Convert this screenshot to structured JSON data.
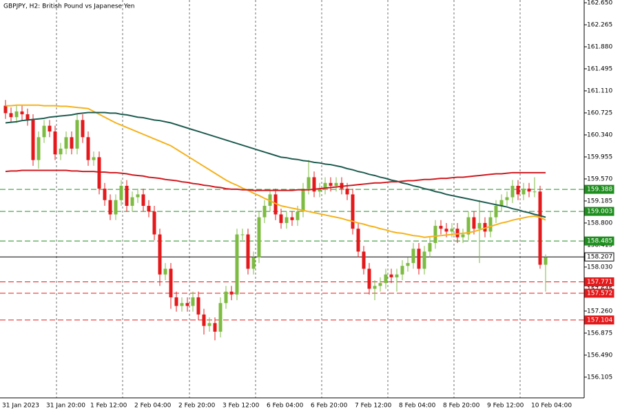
{
  "chart_data": {
    "type": "candlestick",
    "title": "GBPJPY, H2:  British Pound vs Japanese Yen",
    "categories": [
      "31 Jan 2023",
      null,
      null,
      null,
      null,
      null,
      null,
      null,
      "31 Jan 20:00",
      null,
      null,
      null,
      null,
      null,
      null,
      null,
      "1 Feb 12:00",
      null,
      null,
      null,
      null,
      null,
      null,
      null,
      "2 Feb 04:00",
      null,
      null,
      null,
      null,
      null,
      null,
      null,
      "2 Feb 20:00",
      null,
      null,
      null,
      null,
      null,
      null,
      null,
      "3 Feb 12:00",
      null,
      null,
      null,
      null,
      null,
      null,
      null,
      "6 Feb 04:00",
      null,
      null,
      null,
      null,
      null,
      null,
      null,
      "6 Feb 20:00",
      null,
      null,
      null,
      null,
      null,
      null,
      null,
      "7 Feb 12:00",
      null,
      null,
      null,
      null,
      null,
      null,
      null,
      "8 Feb 04:00",
      null,
      null,
      null,
      null,
      null,
      null,
      null,
      "8 Feb 20:00",
      null,
      null,
      null,
      null,
      null,
      null,
      null,
      "9 Feb 12:00",
      null,
      null,
      null,
      null,
      null,
      null,
      null,
      "10 Feb 04:00",
      null,
      null
    ],
    "open": [
      160.85,
      160.72,
      160.65,
      160.75,
      160.7,
      160.6,
      159.9,
      160.3,
      160.5,
      160.4,
      160.0,
      160.1,
      160.3,
      160.1,
      160.6,
      160.3,
      159.9,
      159.95,
      159.4,
      159.2,
      158.95,
      159.2,
      159.45,
      159.1,
      159.25,
      159.3,
      159.1,
      159.0,
      158.6,
      157.9,
      158.0,
      157.5,
      157.35,
      157.4,
      157.35,
      157.5,
      157.2,
      157.0,
      157.05,
      156.9,
      157.4,
      157.6,
      157.55,
      158.6,
      158.6,
      158.0,
      158.2,
      158.9,
      159.1,
      159.3,
      158.95,
      158.8,
      158.9,
      158.85,
      159.0,
      159.4,
      159.6,
      159.35,
      159.4,
      159.5,
      159.45,
      159.5,
      159.4,
      159.3,
      158.7,
      158.3,
      158.0,
      157.65,
      157.7,
      157.75,
      157.9,
      157.85,
      157.9,
      158.05,
      158.1,
      158.35,
      158.0,
      158.3,
      158.45,
      158.75,
      158.7,
      158.65,
      158.7,
      158.55,
      158.6,
      158.9,
      158.7,
      158.8,
      158.65,
      158.9,
      159.1,
      159.2,
      159.25,
      159.45,
      159.3,
      159.4,
      159.35,
      159.35,
      158.07
    ],
    "high": [
      160.95,
      160.82,
      160.85,
      160.85,
      160.8,
      160.7,
      160.4,
      160.6,
      160.6,
      160.5,
      160.2,
      160.4,
      160.4,
      160.7,
      160.7,
      160.4,
      160.05,
      160.05,
      159.5,
      159.3,
      159.3,
      159.55,
      159.55,
      159.35,
      159.4,
      159.4,
      159.2,
      159.1,
      158.7,
      158.1,
      158.1,
      157.6,
      157.5,
      157.5,
      157.6,
      157.6,
      157.3,
      157.15,
      157.15,
      157.5,
      157.7,
      157.7,
      158.7,
      158.7,
      158.7,
      158.3,
      159.0,
      159.2,
      159.4,
      159.4,
      159.05,
      159.0,
      159.0,
      159.1,
      159.5,
      159.9,
      159.7,
      159.5,
      159.6,
      159.6,
      159.6,
      159.6,
      159.5,
      159.4,
      158.8,
      158.4,
      158.1,
      157.8,
      157.85,
      158.0,
      158.0,
      158.0,
      158.15,
      158.2,
      158.45,
      158.45,
      158.4,
      158.55,
      158.85,
      158.85,
      158.8,
      158.8,
      158.8,
      158.7,
      159.0,
      159.0,
      159.2,
      158.9,
      159.0,
      159.2,
      159.3,
      159.35,
      159.55,
      159.55,
      159.5,
      159.5,
      159.6,
      159.45,
      158.25
    ],
    "low": [
      160.62,
      160.55,
      160.55,
      160.6,
      160.5,
      159.8,
      159.75,
      160.2,
      160.3,
      159.9,
      159.9,
      160.0,
      160.0,
      160.0,
      160.2,
      159.8,
      159.8,
      159.3,
      159.1,
      158.85,
      158.85,
      159.1,
      159.0,
      159.0,
      159.15,
      159.0,
      158.9,
      158.5,
      157.7,
      157.8,
      157.3,
      157.25,
      157.25,
      157.25,
      157.25,
      157.1,
      156.85,
      156.9,
      156.75,
      156.8,
      157.3,
      157.45,
      157.45,
      158.5,
      157.9,
      157.9,
      158.1,
      158.8,
      159.0,
      158.85,
      158.7,
      158.7,
      158.75,
      158.75,
      158.9,
      159.3,
      159.25,
      159.25,
      159.3,
      159.35,
      159.35,
      159.3,
      159.2,
      158.6,
      158.2,
      157.9,
      157.55,
      157.45,
      157.6,
      157.65,
      157.75,
      157.6,
      157.8,
      157.95,
      158.0,
      157.9,
      157.9,
      158.2,
      158.35,
      158.6,
      158.55,
      158.55,
      158.45,
      158.45,
      158.5,
      158.6,
      158.1,
      158.55,
      158.55,
      158.8,
      159.0,
      159.1,
      159.15,
      159.2,
      159.2,
      159.25,
      159.25,
      158.0,
      157.6
    ],
    "close": [
      160.72,
      160.65,
      160.75,
      160.7,
      160.6,
      159.9,
      160.3,
      160.5,
      160.4,
      160.0,
      160.1,
      160.3,
      160.1,
      160.6,
      160.3,
      159.9,
      159.95,
      159.4,
      159.2,
      158.95,
      159.2,
      159.45,
      159.1,
      159.25,
      159.3,
      159.1,
      159.0,
      158.6,
      157.9,
      158.0,
      157.5,
      157.35,
      157.4,
      157.35,
      157.5,
      157.2,
      157.0,
      157.05,
      156.9,
      157.4,
      157.6,
      157.55,
      158.6,
      158.6,
      158.0,
      158.2,
      158.9,
      159.1,
      159.3,
      158.95,
      158.8,
      158.9,
      158.85,
      159.0,
      159.4,
      159.6,
      159.35,
      159.4,
      159.5,
      159.45,
      159.5,
      159.4,
      159.3,
      158.7,
      158.3,
      158.0,
      157.65,
      157.7,
      157.75,
      157.9,
      157.85,
      157.9,
      158.05,
      158.1,
      158.35,
      158.0,
      158.3,
      158.45,
      158.75,
      158.7,
      158.65,
      158.7,
      158.55,
      158.6,
      158.9,
      158.7,
      158.8,
      158.65,
      158.9,
      159.1,
      159.2,
      159.25,
      159.45,
      159.3,
      159.4,
      159.35,
      159.35,
      158.07,
      158.2
    ],
    "up_color": "#7dbb42",
    "down_color": "#e3191b",
    "lines": [
      {
        "color": "#f5b21a",
        "values": [
          160.85,
          160.85,
          160.86,
          160.86,
          160.86,
          160.86,
          160.86,
          160.85,
          160.85,
          160.85,
          160.84,
          160.84,
          160.83,
          160.82,
          160.81,
          160.8,
          160.75,
          160.7,
          160.65,
          160.6,
          160.55,
          160.51,
          160.47,
          160.43,
          160.39,
          160.35,
          160.31,
          160.27,
          160.23,
          160.19,
          160.15,
          160.09,
          160.03,
          159.97,
          159.91,
          159.85,
          159.79,
          159.73,
          159.67,
          159.61,
          159.55,
          159.5,
          159.46,
          159.41,
          159.37,
          159.32,
          159.28,
          159.23,
          159.19,
          159.14,
          159.1,
          159.08,
          159.06,
          159.04,
          159.02,
          159.0,
          158.98,
          158.96,
          158.94,
          158.92,
          158.9,
          158.88,
          158.85,
          158.83,
          158.8,
          158.78,
          158.75,
          158.73,
          158.7,
          158.68,
          158.65,
          158.63,
          158.62,
          158.6,
          158.58,
          158.57,
          158.55,
          158.56,
          158.57,
          158.58,
          158.59,
          158.6,
          158.61,
          158.62,
          158.63,
          158.65,
          158.68,
          158.71,
          158.74,
          158.77,
          158.8,
          158.82,
          158.85,
          158.87,
          158.89,
          158.91,
          158.92,
          158.9,
          158.85
        ]
      },
      {
        "color": "#1d5b4f",
        "values": [
          160.55,
          160.56,
          160.57,
          160.59,
          160.6,
          160.61,
          160.62,
          160.63,
          160.65,
          160.66,
          160.67,
          160.68,
          160.69,
          160.71,
          160.72,
          160.73,
          160.73,
          160.73,
          160.73,
          160.72,
          160.72,
          160.7,
          160.69,
          160.67,
          160.65,
          160.64,
          160.62,
          160.6,
          160.59,
          160.57,
          160.55,
          160.52,
          160.49,
          160.46,
          160.43,
          160.4,
          160.37,
          160.34,
          160.31,
          160.28,
          160.25,
          160.22,
          160.19,
          160.16,
          160.13,
          160.1,
          160.07,
          160.04,
          160.01,
          159.98,
          159.95,
          159.94,
          159.92,
          159.91,
          159.89,
          159.88,
          159.86,
          159.85,
          159.83,
          159.82,
          159.8,
          159.78,
          159.75,
          159.73,
          159.7,
          159.68,
          159.65,
          159.63,
          159.6,
          159.58,
          159.55,
          159.53,
          159.5,
          159.48,
          159.45,
          159.43,
          159.4,
          159.38,
          159.35,
          159.33,
          159.3,
          159.28,
          159.26,
          159.24,
          159.22,
          159.2,
          159.18,
          159.16,
          159.14,
          159.12,
          159.1,
          159.08,
          159.05,
          159.03,
          159.0,
          158.98,
          158.95,
          158.93,
          158.9
        ]
      },
      {
        "color": "#d0191f",
        "values": [
          159.7,
          159.71,
          159.71,
          159.72,
          159.72,
          159.72,
          159.72,
          159.72,
          159.72,
          159.72,
          159.72,
          159.72,
          159.71,
          159.71,
          159.7,
          159.7,
          159.7,
          159.69,
          159.69,
          159.68,
          159.68,
          159.67,
          159.66,
          159.64,
          159.63,
          159.62,
          159.6,
          159.59,
          159.58,
          159.56,
          159.55,
          159.54,
          159.52,
          159.51,
          159.49,
          159.48,
          159.46,
          159.45,
          159.43,
          159.42,
          159.4,
          159.39,
          159.39,
          159.38,
          159.38,
          159.37,
          159.37,
          159.37,
          159.37,
          159.37,
          159.37,
          159.37,
          159.37,
          159.38,
          159.38,
          159.38,
          159.39,
          159.4,
          159.41,
          159.42,
          159.43,
          159.44,
          159.45,
          159.46,
          159.47,
          159.48,
          159.49,
          159.5,
          159.5,
          159.51,
          159.52,
          159.52,
          159.53,
          159.54,
          159.54,
          159.55,
          159.56,
          159.56,
          159.57,
          159.58,
          159.58,
          159.59,
          159.6,
          159.6,
          159.61,
          159.62,
          159.63,
          159.64,
          159.65,
          159.66,
          159.66,
          159.67,
          159.68,
          159.68,
          159.68,
          159.68,
          159.68,
          159.68,
          159.68
        ]
      }
    ],
    "levels": [
      {
        "value": 159.388,
        "color": "#1e8f1e",
        "style": "dashed"
      },
      {
        "value": 159.003,
        "color": "#1e8f1e",
        "style": "dashed"
      },
      {
        "value": 158.485,
        "color": "#1e8f1e",
        "style": "dashed"
      },
      {
        "value": 158.207,
        "color": "#000000",
        "style": "solid"
      },
      {
        "value": 157.771,
        "color": "#e3191b",
        "style": "dashed"
      },
      {
        "value": 157.572,
        "color": "#e3191b",
        "style": "dashed"
      },
      {
        "value": 157.104,
        "color": "#e3191b",
        "style": "dashed"
      }
    ],
    "ylim": [
      155.743,
      162.698
    ],
    "yticks": [
      {
        "value": 162.65,
        "label": "162.650"
      },
      {
        "value": 162.265,
        "label": "162.265"
      },
      {
        "value": 161.88,
        "label": "161.880"
      },
      {
        "value": 161.495,
        "label": "161.495"
      },
      {
        "value": 161.11,
        "label": "161.110"
      },
      {
        "value": 160.725,
        "label": "160.725"
      },
      {
        "value": 160.34,
        "label": "160.340"
      },
      {
        "value": 159.955,
        "label": "159.955"
      },
      {
        "value": 159.57,
        "label": "159.570"
      },
      {
        "value": 159.185,
        "label": "159.185"
      },
      {
        "value": 158.8,
        "label": "158.800"
      },
      {
        "value": 158.415,
        "label": "158.415"
      },
      {
        "value": 158.03,
        "label": "158.030"
      },
      {
        "value": 157.645,
        "label": "157.645"
      },
      {
        "value": 157.26,
        "label": "157.260"
      },
      {
        "value": 156.875,
        "label": "156.875"
      },
      {
        "value": 156.49,
        "label": "156.490"
      },
      {
        "value": 156.105,
        "label": "156.105"
      }
    ]
  }
}
